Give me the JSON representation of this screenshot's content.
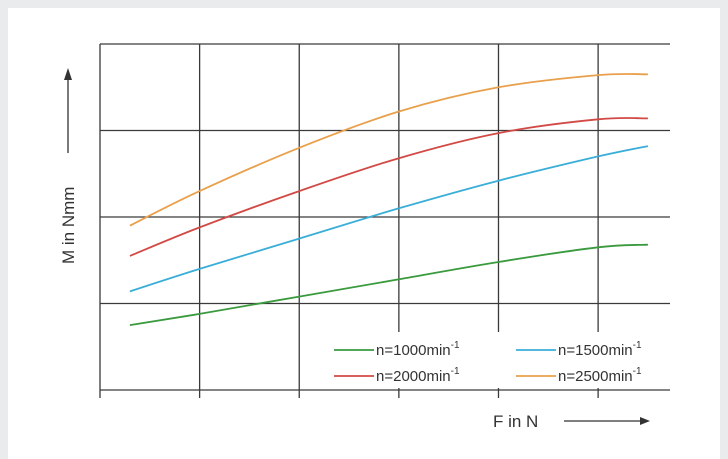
{
  "chart_data": {
    "type": "line",
    "xlabel": "F in N",
    "ylabel": "M in Nmm",
    "xlim": [
      0,
      5.3
    ],
    "ylim": [
      0,
      4.0
    ],
    "grid": true,
    "legend_position": "bottom-right",
    "series": [
      {
        "name": "n=1000min-1",
        "label_base": "n=1000min",
        "label_sup": "-1",
        "color": "#3a9a3e",
        "x": [
          0.3,
          1,
          2,
          3,
          4,
          5,
          5.5
        ],
        "y": [
          0.75,
          0.88,
          1.08,
          1.28,
          1.48,
          1.65,
          1.68
        ]
      },
      {
        "name": "n=1500min-1",
        "label_base": "n=1500min",
        "label_sup": "-1",
        "color": "#3aaed8",
        "x": [
          0.3,
          1,
          2,
          3,
          4,
          5,
          5.5
        ],
        "y": [
          1.14,
          1.4,
          1.75,
          2.1,
          2.42,
          2.7,
          2.82
        ]
      },
      {
        "name": "n=2000min-1",
        "label_base": "n=2000min",
        "label_sup": "-1",
        "color": "#d24a45",
        "x": [
          0.3,
          1,
          2,
          3,
          4,
          5,
          5.5
        ],
        "y": [
          1.55,
          1.88,
          2.3,
          2.68,
          2.97,
          3.13,
          3.14
        ]
      },
      {
        "name": "n=2500min-1",
        "label_base": "n=2500min",
        "label_sup": "-1",
        "color": "#e9a04c",
        "x": [
          0.3,
          1,
          2,
          3,
          4,
          5,
          5.5
        ],
        "y": [
          1.9,
          2.3,
          2.8,
          3.22,
          3.5,
          3.64,
          3.65
        ]
      }
    ]
  }
}
